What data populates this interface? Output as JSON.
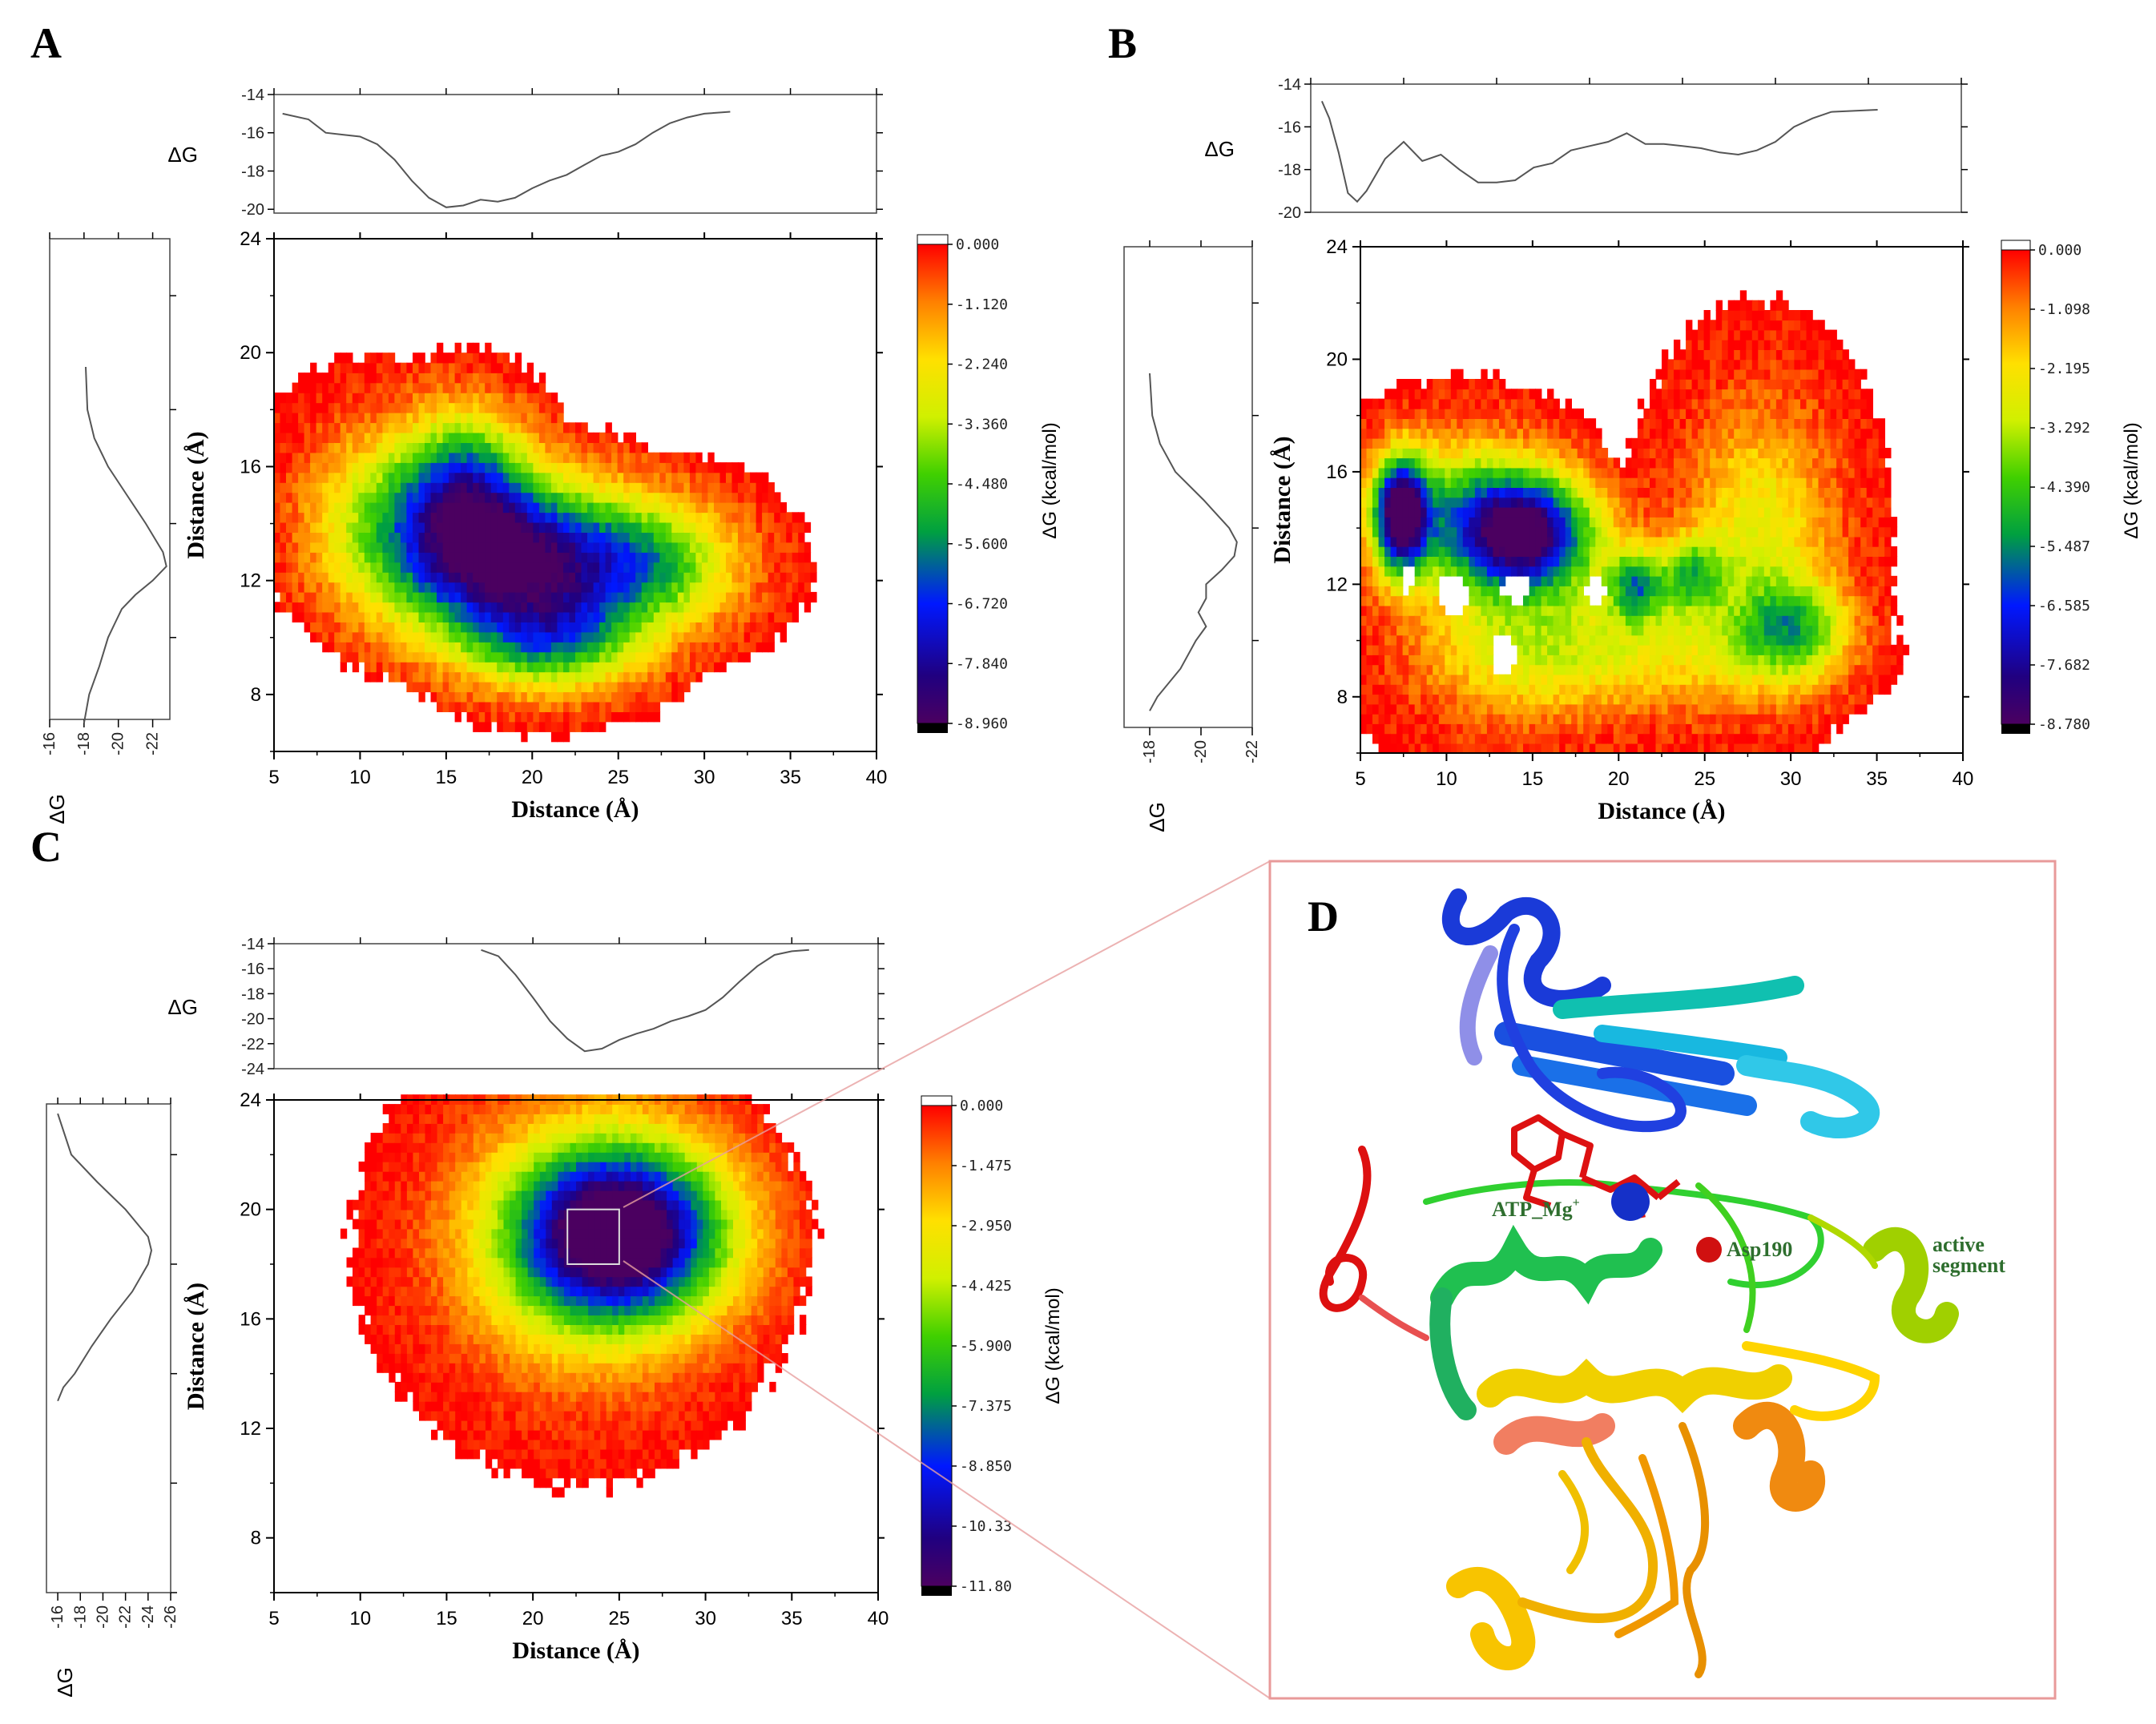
{
  "panels": {
    "A": {
      "label": "A"
    },
    "B": {
      "label": "B"
    },
    "C": {
      "label": "C"
    },
    "D": {
      "label": "D"
    }
  },
  "molecule": {
    "labels": {
      "atp": "ATP_Mg",
      "atp_sup": "+",
      "asp": "Asp190",
      "active1": "active",
      "active2": "segment"
    },
    "colors": {
      "accent_label": "#2e6e2e",
      "atp": "#dd1111",
      "mg": "#1530c8",
      "asp": "#d01010",
      "box": "#e89a9a"
    }
  },
  "chart_data": [
    {
      "panel": "A",
      "type": "heatmap",
      "title": "",
      "xlabel": "Distance (Å)",
      "ylabel": "Distance (Å)",
      "xlim": [
        5,
        40
      ],
      "ylim": [
        6,
        24
      ],
      "xticks": [
        "5",
        "10",
        "15",
        "20",
        "25",
        "30",
        "35",
        "40"
      ],
      "yticks": [
        "8",
        "12",
        "16",
        "20",
        "24"
      ],
      "colorbar": {
        "label": "ΔG (kcal/mol)",
        "ticks": [
          "0.000",
          "-1.120",
          "-2.240",
          "-3.360",
          "-4.480",
          "-5.600",
          "-6.720",
          "-7.840",
          "-8.960"
        ],
        "min": -8.96,
        "max": 0
      },
      "top_profile": {
        "ylabel": "ΔG",
        "yticks": [
          "-14",
          "-16",
          "-18",
          "-20"
        ],
        "ylim": [
          -20.2,
          -14
        ],
        "x": [
          5.5,
          7,
          8,
          9,
          10,
          11,
          12,
          13,
          14,
          15,
          16,
          17,
          18,
          19,
          20,
          21,
          22,
          23,
          24,
          25,
          26,
          27,
          28,
          29,
          30,
          31.5
        ],
        "y": [
          -15,
          -15.3,
          -16,
          -16.1,
          -16.2,
          -16.6,
          -17.4,
          -18.5,
          -19.4,
          -19.9,
          -19.8,
          -19.5,
          -19.6,
          -19.4,
          -18.9,
          -18.5,
          -18.2,
          -17.7,
          -17.2,
          -17,
          -16.6,
          -16,
          -15.5,
          -15.2,
          -15.0,
          -14.9
        ]
      },
      "left_profile": {
        "xlabel": "ΔG",
        "xticks": [
          "-16",
          "-18",
          "-20",
          "-22"
        ],
        "xlim": [
          -16,
          -23
        ],
        "y": [
          7,
          8,
          9,
          10,
          10.5,
          11,
          11.5,
          12,
          12.5,
          13,
          14,
          15,
          16,
          17,
          18,
          19.5
        ],
        "g": [
          -18,
          -18.3,
          -18.9,
          -19.4,
          -19.8,
          -20.2,
          -21.0,
          -22.0,
          -22.8,
          -22.6,
          -21.6,
          -20.5,
          -19.4,
          -18.6,
          -18.2,
          -18.1
        ]
      },
      "basins": [
        {
          "x": 18.5,
          "y": 12.5,
          "depth": 8.9,
          "sx": 5.0,
          "sy": 1.9
        },
        {
          "x": 16,
          "y": 15.3,
          "depth": 4.8,
          "sx": 2.5,
          "sy": 1.8
        },
        {
          "x": 21,
          "y": 9.6,
          "depth": 3.9,
          "sx": 3.5,
          "sy": 1.2
        },
        {
          "x": 27,
          "y": 12.4,
          "depth": 3.6,
          "sx": 3.5,
          "sy": 1.5
        },
        {
          "x": 11,
          "y": 14.5,
          "depth": 2.4,
          "sx": 3.0,
          "sy": 2.0
        }
      ]
    },
    {
      "panel": "B",
      "type": "heatmap",
      "title": "",
      "xlabel": "Distance (Å)",
      "ylabel": "Distance (Å)",
      "xlim": [
        5,
        40
      ],
      "ylim": [
        6,
        24
      ],
      "xticks": [
        "5",
        "10",
        "15",
        "20",
        "25",
        "30",
        "35",
        "40"
      ],
      "yticks": [
        "8",
        "12",
        "16",
        "20",
        "24"
      ],
      "colorbar": {
        "label": "ΔG (kcal/mol)",
        "ticks": [
          "0.000",
          "-1.098",
          "-2.195",
          "-3.292",
          "-4.390",
          "-5.487",
          "-6.585",
          "-7.682",
          "-8.780"
        ],
        "min": -8.78,
        "max": 0
      },
      "top_profile": {
        "ylabel": "ΔG",
        "yticks": [
          "-14",
          "-16",
          "-18",
          "-20"
        ],
        "ylim": [
          -20,
          -14
        ],
        "x": [
          5.6,
          6,
          6.5,
          7,
          7.5,
          8,
          9,
          10,
          11,
          12,
          13,
          14,
          15,
          16,
          17,
          18,
          19,
          20,
          21,
          22,
          23,
          24,
          25,
          26,
          27,
          28,
          29,
          30,
          31,
          32,
          33,
          35.5
        ],
        "y": [
          -14.8,
          -15.6,
          -17.2,
          -19.1,
          -19.5,
          -19.0,
          -17.5,
          -16.7,
          -17.6,
          -17.3,
          -18.0,
          -18.6,
          -18.6,
          -18.5,
          -17.9,
          -17.7,
          -17.1,
          -16.9,
          -16.7,
          -16.3,
          -16.8,
          -16.8,
          -16.9,
          -17.0,
          -17.2,
          -17.3,
          -17.1,
          -16.7,
          -16.0,
          -15.6,
          -15.3,
          -15.2
        ]
      },
      "left_profile": {
        "xlabel": "ΔG",
        "xticks": [
          "-18",
          "-20",
          "-22"
        ],
        "xlim": [
          -17,
          -22
        ],
        "y": [
          7.5,
          8,
          9,
          10,
          10.5,
          11,
          11.5,
          12,
          12.5,
          13,
          13.5,
          14,
          15,
          16,
          17,
          18,
          19.5
        ],
        "g": [
          -18,
          -18.3,
          -19.2,
          -19.8,
          -20.2,
          -19.9,
          -20.2,
          -20.2,
          -20.8,
          -21.3,
          -21.4,
          -21.1,
          -20.1,
          -19.0,
          -18.4,
          -18.1,
          -18.0
        ]
      },
      "basins": [
        {
          "x": 7.2,
          "y": 14.3,
          "depth": 8.7,
          "sx": 1.1,
          "sy": 1.4
        },
        {
          "x": 14.5,
          "y": 13.6,
          "depth": 7.8,
          "sx": 2.8,
          "sy": 1.4
        },
        {
          "x": 11,
          "y": 14.5,
          "depth": 3.6,
          "sx": 3.5,
          "sy": 1.8
        },
        {
          "x": 20.8,
          "y": 11.8,
          "depth": 4.4,
          "sx": 1.1,
          "sy": 0.9
        },
        {
          "x": 24,
          "y": 12.2,
          "depth": 3.6,
          "sx": 1.3,
          "sy": 0.9
        },
        {
          "x": 30,
          "y": 10.2,
          "depth": 3.6,
          "sx": 2.2,
          "sy": 1.2
        },
        {
          "x": 28,
          "y": 13.5,
          "depth": 2.7,
          "sx": 3.0,
          "sy": 3.2
        },
        {
          "x": 20.5,
          "y": 9.5,
          "depth": 2.2,
          "sx": 6.0,
          "sy": 1.5
        },
        {
          "x": 13.5,
          "y": 9.8,
          "depth": 1.8,
          "sx": 4.0,
          "sy": 2.0
        }
      ]
    },
    {
      "panel": "C",
      "type": "heatmap",
      "title": "",
      "xlabel": "Distance (Å)",
      "ylabel": "Distance (Å)",
      "xlim": [
        5,
        40
      ],
      "ylim": [
        6,
        24
      ],
      "xticks": [
        "5",
        "10",
        "15",
        "20",
        "25",
        "30",
        "35",
        "40"
      ],
      "yticks": [
        "8",
        "12",
        "16",
        "20",
        "24"
      ],
      "colorbar": {
        "label": "ΔG (kcal/mol)",
        "ticks": [
          "0.000",
          "-1.475",
          "-2.950",
          "-4.425",
          "-5.900",
          "-7.375",
          "-8.850",
          "-10.33",
          "-11.80"
        ],
        "min": -11.8,
        "max": 0
      },
      "top_profile": {
        "ylabel": "ΔG",
        "yticks": [
          "-14",
          "-16",
          "-18",
          "-20",
          "-22",
          "-24"
        ],
        "ylim": [
          -24,
          -14
        ],
        "x": [
          17,
          18,
          19,
          20,
          21,
          22,
          23,
          24,
          25,
          26,
          27,
          28,
          29,
          30,
          31,
          32,
          33,
          34,
          35,
          36
        ],
        "y": [
          -14.5,
          -15,
          -16.5,
          -18.3,
          -20.2,
          -21.6,
          -22.6,
          -22.4,
          -21.7,
          -21.2,
          -20.8,
          -20.2,
          -19.8,
          -19.3,
          -18.3,
          -17.0,
          -15.8,
          -14.9,
          -14.6,
          -14.5
        ]
      },
      "left_profile": {
        "xlabel": "ΔG",
        "xticks": [
          "-16",
          "-18",
          "-20",
          "-22",
          "-24",
          "-26"
        ],
        "xlim": [
          -15,
          -26
        ],
        "y": [
          13,
          13.5,
          14,
          15,
          16,
          17,
          18,
          18.5,
          19,
          20,
          21,
          22,
          23.5
        ],
        "g": [
          -16,
          -16.5,
          -17.5,
          -19,
          -20.7,
          -22.6,
          -24.0,
          -24.3,
          -24.0,
          -22.0,
          -19.5,
          -17.2,
          -16.0
        ]
      },
      "selection_box": {
        "x": [
          22,
          25
        ],
        "y": [
          18,
          20
        ]
      },
      "basins": [
        {
          "x": 25,
          "y": 19,
          "depth": 11.6,
          "sx": 4.2,
          "sy": 2.2
        },
        {
          "x": 22.5,
          "y": 18.5,
          "depth": 3.5,
          "sx": 5.0,
          "sy": 3.3
        }
      ]
    }
  ]
}
